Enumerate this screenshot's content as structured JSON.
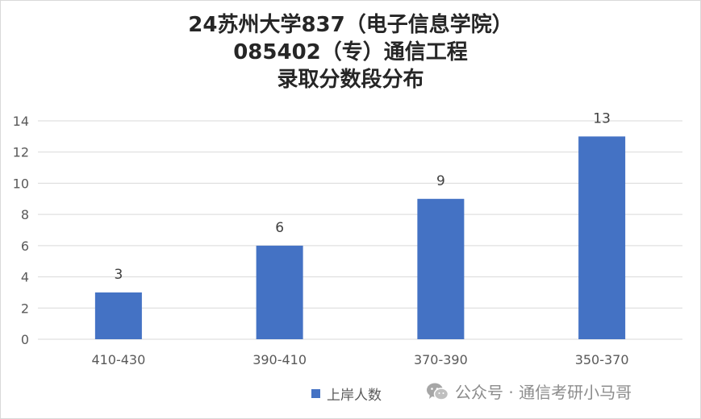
{
  "chart_data": {
    "type": "bar",
    "title_lines": [
      "24苏州大学837（电子信息学院）",
      "085402（专）通信工程",
      "录取分数段分布"
    ],
    "categories": [
      "410-430",
      "390-410",
      "370-390",
      "350-370"
    ],
    "series": [
      {
        "name": "上岸人数",
        "values": [
          3,
          6,
          9,
          13
        ],
        "color": "#4472c4"
      }
    ],
    "y_ticks": [
      0,
      2,
      4,
      6,
      8,
      10,
      12,
      14
    ],
    "ylim": [
      0,
      14
    ],
    "grid": true,
    "data_labels": true,
    "legend_position": "bottom"
  },
  "watermark": {
    "icon": "wechat-icon",
    "text": "公众号 · 通信考研小马哥"
  }
}
